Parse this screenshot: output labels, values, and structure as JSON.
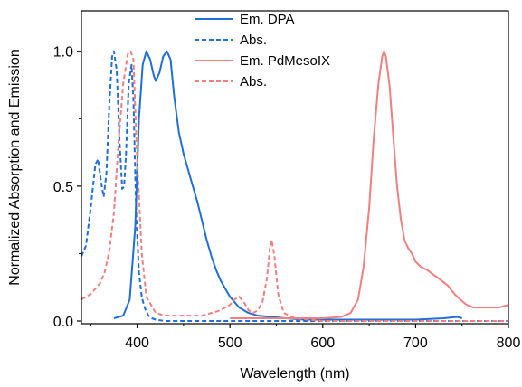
{
  "chart_data": {
    "type": "line",
    "title": "",
    "xlabel": "Wavelength (nm)",
    "ylabel": "Normalized Absorption and Emission",
    "xlim": [
      340,
      800
    ],
    "ylim": [
      -0.01,
      1.15
    ],
    "xticks": [
      400,
      500,
      600,
      700,
      800
    ],
    "yticks": [
      0.0,
      0.5,
      1.0
    ],
    "xtick_labels": [
      "400",
      "500",
      "600",
      "700",
      "800"
    ],
    "ytick_labels": [
      "0.0",
      "0.5",
      "1.0"
    ],
    "grid": false,
    "legend_position": "top-center",
    "series": [
      {
        "name": "Em. DPA",
        "color": "#1f6fd6",
        "dash": "solid",
        "x": [
          375,
          385,
          392,
          398,
          402,
          406,
          410,
          414,
          418,
          420,
          424,
          428,
          432,
          436,
          440,
          445,
          450,
          455,
          460,
          465,
          470,
          475,
          480,
          485,
          490,
          495,
          500,
          505,
          510,
          520,
          530,
          545,
          560,
          580,
          600,
          650,
          700,
          730,
          745,
          750
        ],
        "y": [
          0.01,
          0.02,
          0.08,
          0.35,
          0.75,
          0.95,
          1.0,
          0.97,
          0.91,
          0.89,
          0.92,
          0.98,
          1.0,
          0.97,
          0.83,
          0.7,
          0.62,
          0.56,
          0.5,
          0.44,
          0.37,
          0.3,
          0.24,
          0.19,
          0.15,
          0.12,
          0.09,
          0.07,
          0.05,
          0.03,
          0.02,
          0.015,
          0.01,
          0.005,
          0.005,
          0.005,
          0.005,
          0.01,
          0.015,
          0.01
        ]
      },
      {
        "name": "Abs.",
        "color": "#1f6fd6",
        "dash": "dashed",
        "x": [
          340,
          345,
          350,
          355,
          358,
          361,
          364,
          367,
          370,
          373,
          375,
          378,
          381,
          384,
          386,
          388,
          391,
          394,
          396,
          399,
          402,
          405,
          408,
          412,
          416,
          420,
          430,
          450,
          500,
          600,
          700,
          800
        ],
        "y": [
          0.24,
          0.28,
          0.42,
          0.58,
          0.6,
          0.52,
          0.46,
          0.55,
          0.8,
          0.98,
          1.0,
          0.93,
          0.67,
          0.49,
          0.5,
          0.62,
          0.88,
          0.95,
          0.82,
          0.4,
          0.18,
          0.09,
          0.05,
          0.02,
          0.01,
          0.005,
          0.0,
          0.0,
          0.0,
          0.0,
          0.0,
          0.0
        ]
      },
      {
        "name": "Em. PdMesoIX",
        "color": "#f08080",
        "dash": "solid",
        "x": [
          500,
          560,
          600,
          620,
          630,
          638,
          644,
          650,
          655,
          660,
          664,
          666,
          668,
          672,
          676,
          680,
          684,
          688,
          692,
          696,
          700,
          706,
          712,
          720,
          728,
          735,
          742,
          748,
          755,
          762,
          770,
          780,
          790,
          800
        ],
        "y": [
          0.01,
          0.01,
          0.01,
          0.015,
          0.03,
          0.08,
          0.2,
          0.42,
          0.68,
          0.88,
          0.98,
          1.0,
          0.98,
          0.87,
          0.68,
          0.5,
          0.38,
          0.3,
          0.27,
          0.25,
          0.22,
          0.2,
          0.19,
          0.17,
          0.15,
          0.13,
          0.1,
          0.08,
          0.06,
          0.05,
          0.05,
          0.05,
          0.05,
          0.06
        ]
      },
      {
        "name": "Abs.",
        "color": "#f08080",
        "dash": "dashed",
        "x": [
          340,
          350,
          360,
          365,
          370,
          375,
          380,
          385,
          390,
          393,
          396,
          400,
          405,
          410,
          420,
          430,
          450,
          470,
          490,
          500,
          505,
          510,
          515,
          520,
          525,
          530,
          535,
          540,
          543,
          545,
          548,
          552,
          558,
          570,
          600,
          650,
          700,
          750,
          800
        ],
        "y": [
          0.08,
          0.1,
          0.14,
          0.18,
          0.26,
          0.4,
          0.66,
          0.88,
          0.99,
          1.0,
          0.97,
          0.6,
          0.25,
          0.09,
          0.03,
          0.02,
          0.02,
          0.02,
          0.04,
          0.06,
          0.08,
          0.09,
          0.07,
          0.04,
          0.03,
          0.04,
          0.07,
          0.16,
          0.27,
          0.3,
          0.24,
          0.1,
          0.03,
          0.01,
          0.0,
          0.0,
          0.0,
          0.0,
          0.0
        ]
      }
    ]
  }
}
